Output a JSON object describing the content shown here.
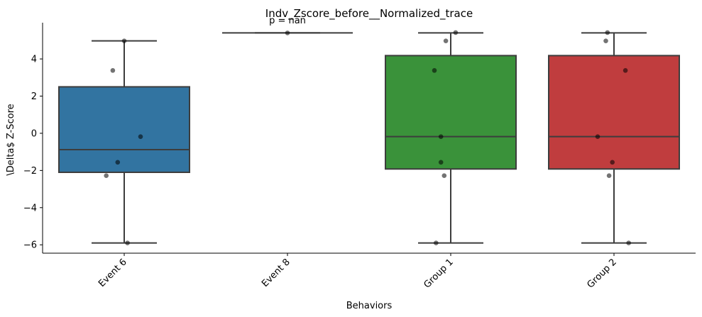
{
  "chart_data": {
    "type": "box",
    "title": "Indv_Zscore_before__Normalized_trace",
    "annotation": "p = nan",
    "xlabel": "Behaviors",
    "ylabel": "\\Delta$ Z-Score",
    "ylim": [
      -6.45,
      5.95
    ],
    "yticks": [
      -6,
      -4,
      -2,
      0,
      2,
      4
    ],
    "ytick_labels": [
      "−6",
      "−4",
      "−2",
      "0",
      "2",
      "4"
    ],
    "grid": false,
    "categories": [
      "Event 6",
      "Event 8",
      "Group 1",
      "Group 2"
    ],
    "boxes": [
      {
        "category": "Event 6",
        "color": "#3274a1",
        "whisker_low": -5.9,
        "q1": -2.1,
        "median": -0.88,
        "q3": 2.5,
        "whisker_high": 4.97
      },
      {
        "category": "Event 8",
        "color": "#e1812c",
        "whisker_low": 5.4,
        "q1": 5.4,
        "median": 5.4,
        "q3": 5.4,
        "whisker_high": 5.4
      },
      {
        "category": "Group 1",
        "color": "#3a923a",
        "whisker_low": -5.9,
        "q1": -1.92,
        "median": -0.18,
        "q3": 4.18,
        "whisker_high": 5.4
      },
      {
        "category": "Group 2",
        "color": "#c03d3e",
        "whisker_low": -5.9,
        "q1": -1.92,
        "median": -0.18,
        "q3": 4.18,
        "whisker_high": 5.4
      }
    ],
    "points": [
      {
        "category": "Event 6",
        "x_offset": 0.0,
        "y": 4.97
      },
      {
        "category": "Event 6",
        "x_offset": -0.07,
        "y": 3.38
      },
      {
        "category": "Event 6",
        "x_offset": 0.1,
        "y": -0.18
      },
      {
        "category": "Event 6",
        "x_offset": -0.04,
        "y": -1.56
      },
      {
        "category": "Event 6",
        "x_offset": -0.11,
        "y": -2.28
      },
      {
        "category": "Event 6",
        "x_offset": 0.02,
        "y": -5.9
      },
      {
        "category": "Event 8",
        "x_offset": 0.0,
        "y": 5.4
      },
      {
        "category": "Group 1",
        "x_offset": 0.03,
        "y": 5.42
      },
      {
        "category": "Group 1",
        "x_offset": -0.03,
        "y": 4.97
      },
      {
        "category": "Group 1",
        "x_offset": -0.1,
        "y": 3.38
      },
      {
        "category": "Group 1",
        "x_offset": -0.06,
        "y": -0.18
      },
      {
        "category": "Group 1",
        "x_offset": -0.06,
        "y": -1.56
      },
      {
        "category": "Group 1",
        "x_offset": -0.04,
        "y": -2.28
      },
      {
        "category": "Group 1",
        "x_offset": -0.09,
        "y": -5.9
      },
      {
        "category": "Group 2",
        "x_offset": -0.04,
        "y": 5.42
      },
      {
        "category": "Group 2",
        "x_offset": -0.05,
        "y": 4.97
      },
      {
        "category": "Group 2",
        "x_offset": 0.07,
        "y": 3.38
      },
      {
        "category": "Group 2",
        "x_offset": -0.1,
        "y": -0.18
      },
      {
        "category": "Group 2",
        "x_offset": -0.01,
        "y": -1.56
      },
      {
        "category": "Group 2",
        "x_offset": -0.03,
        "y": -2.28
      },
      {
        "category": "Group 2",
        "x_offset": 0.09,
        "y": -5.9
      }
    ],
    "line_color": "#3d3d3d",
    "point_color": "#000000"
  }
}
